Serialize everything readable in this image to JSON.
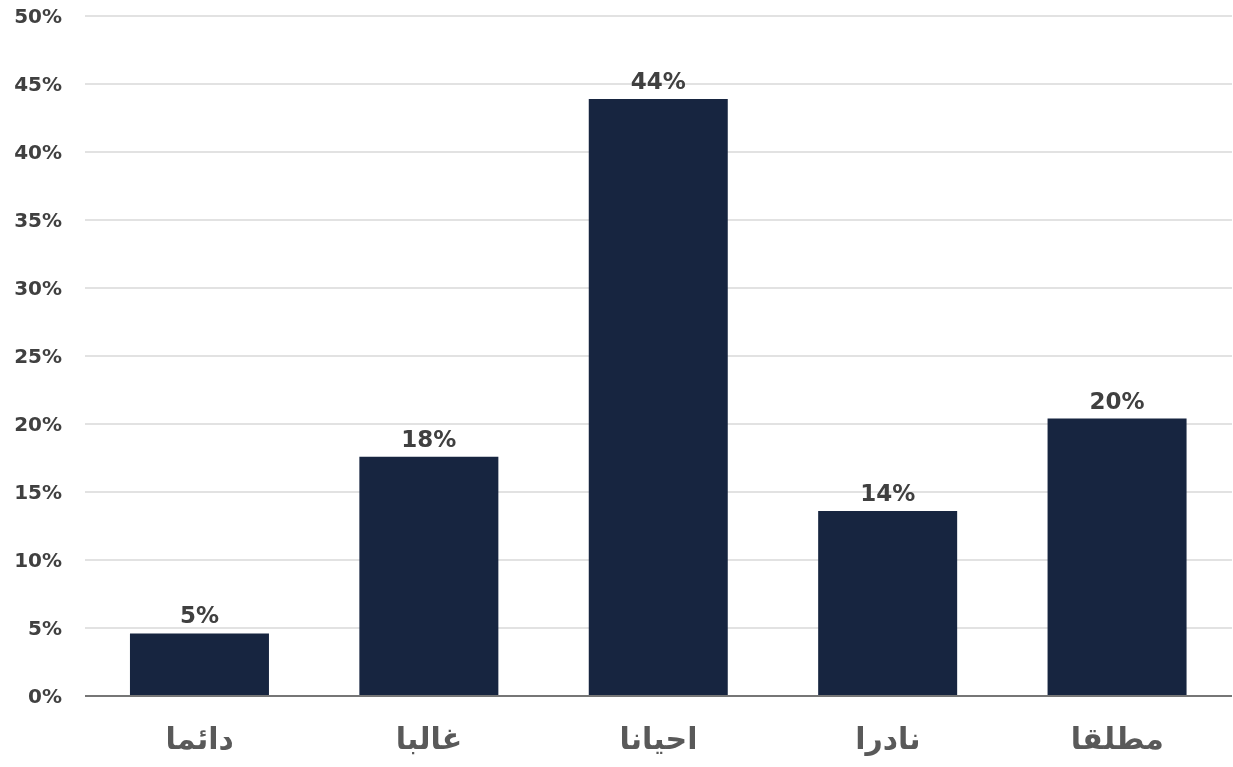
{
  "chart_data": {
    "type": "bar",
    "categories": [
      "دائما",
      "غالبا",
      "احيانا",
      "نادرا",
      "مطلقا"
    ],
    "values": [
      4.6,
      17.6,
      43.9,
      13.6,
      20.4
    ],
    "value_labels": [
      "5%",
      "18%",
      "44%",
      "14%",
      "20%"
    ],
    "color": "#172540",
    "ylim": [
      0,
      50
    ],
    "yticks": [
      {
        "value": 0,
        "label": "0%"
      },
      {
        "value": 5,
        "label": "5%"
      },
      {
        "value": 10,
        "label": "10%"
      },
      {
        "value": 15,
        "label": "15%"
      },
      {
        "value": 20,
        "label": "20%"
      },
      {
        "value": 25,
        "label": "25%"
      },
      {
        "value": 30,
        "label": "30%"
      },
      {
        "value": 35,
        "label": "35%"
      },
      {
        "value": 40,
        "label": "40%"
      },
      {
        "value": 45,
        "label": "45%"
      },
      {
        "value": 50,
        "label": "50%"
      }
    ],
    "grid": "y"
  }
}
